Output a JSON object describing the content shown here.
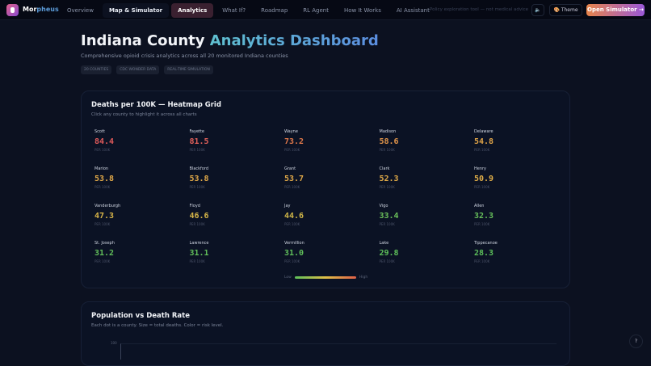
{
  "nav": {
    "brand_a": "Mor",
    "brand_b": "pheus",
    "tabs": [
      "Overview",
      "Map & Simulator",
      "Analytics",
      "What If?",
      "Roadmap",
      "RL Agent",
      "How It Works",
      "AI Assistant"
    ],
    "active": "Analytics",
    "disclaimer": "Policy exploration tool — not medical advice",
    "sound_icon": "🔈",
    "theme": "Theme",
    "theme_icon": "🎨",
    "open": "Open Simulator →"
  },
  "header": {
    "title_a": "Indiana County ",
    "title_b": "Analytics Dashboard",
    "subtitle": "Comprehensive opioid crisis analytics across all 20 monitored Indiana counties",
    "pills": [
      "20 COUNTIES",
      "CDC WONDER DATA",
      "REAL-TIME SIMULATION"
    ]
  },
  "heatmap": {
    "title": "Deaths per 100K — Heatmap Grid",
    "subtitle": "Click any county to highlight it across all charts",
    "unit": "PER 100K",
    "low": "Low",
    "high": "High",
    "counties": [
      {
        "name": "Scott",
        "value": "84.4",
        "color": "#e05a5a"
      },
      {
        "name": "Fayette",
        "value": "81.5",
        "color": "#e0605a"
      },
      {
        "name": "Wayne",
        "value": "73.2",
        "color": "#e0784a"
      },
      {
        "name": "Madison",
        "value": "58.6",
        "color": "#e0944a"
      },
      {
        "name": "Delaware",
        "value": "54.8",
        "color": "#e0a448"
      },
      {
        "name": "Marion",
        "value": "53.8",
        "color": "#e0a848"
      },
      {
        "name": "Blackford",
        "value": "53.8",
        "color": "#e0a848"
      },
      {
        "name": "Grant",
        "value": "53.7",
        "color": "#e0a848"
      },
      {
        "name": "Clark",
        "value": "52.3",
        "color": "#e0aa48"
      },
      {
        "name": "Henry",
        "value": "50.9",
        "color": "#e0ae48"
      },
      {
        "name": "Vanderburgh",
        "value": "47.3",
        "color": "#d8b448"
      },
      {
        "name": "Floyd",
        "value": "46.6",
        "color": "#d4b448"
      },
      {
        "name": "Jay",
        "value": "44.6",
        "color": "#ceb448"
      },
      {
        "name": "Vigo",
        "value": "33.4",
        "color": "#6abf5a"
      },
      {
        "name": "Allen",
        "value": "32.3",
        "color": "#66bf5a"
      },
      {
        "name": "St. Joseph",
        "value": "31.2",
        "color": "#62bf5a"
      },
      {
        "name": "Lawrence",
        "value": "31.1",
        "color": "#62bf5a"
      },
      {
        "name": "Vermillion",
        "value": "31.0",
        "color": "#60bf5a"
      },
      {
        "name": "Lake",
        "value": "29.8",
        "color": "#5ebf5a"
      },
      {
        "name": "Tippecanoe",
        "value": "28.3",
        "color": "#5cbf5a"
      }
    ]
  },
  "scatter": {
    "title": "Population vs Death Rate",
    "subtitle": "Each dot is a county. Size = total deaths. Color = risk level.",
    "ytick_top": "100"
  },
  "help": "?"
}
